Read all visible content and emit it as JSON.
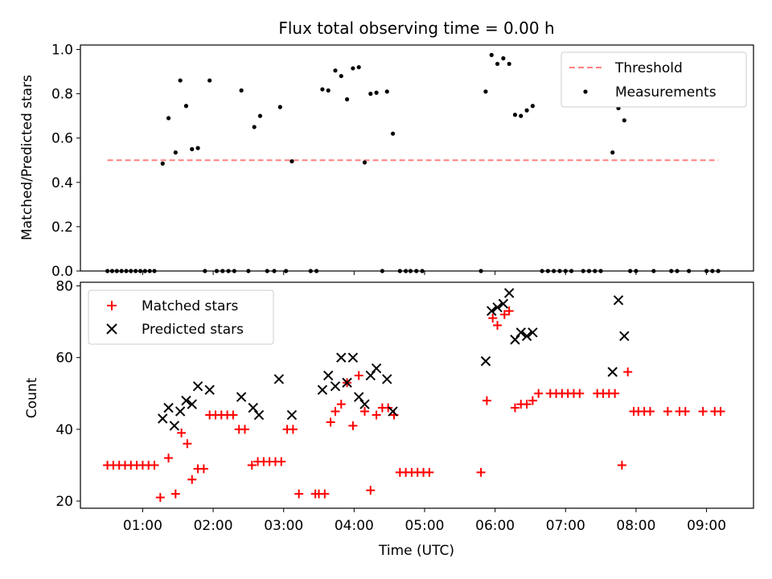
{
  "chart_data": [
    {
      "type": "scatter",
      "title": "Flux total observing time = 0.00 h",
      "xlabel": "",
      "ylabel": "Matched/Predicted stars",
      "xlim": [
        "00:07",
        "09:40"
      ],
      "ylim": [
        0,
        1.02
      ],
      "yticks": [
        "0.0",
        "0.2",
        "0.4",
        "0.6",
        "0.8",
        "1.0"
      ],
      "legend_position": "upper right",
      "threshold": {
        "name": "Threshold",
        "value": 0.5,
        "x_start": "00:30",
        "x_end": "09:10",
        "color": "#ff7f7f",
        "style": "dashed"
      },
      "series": [
        {
          "name": "Measurements",
          "color": "#000000",
          "marker": "dot",
          "points": [
            [
              "00:30",
              0
            ],
            [
              "00:34",
              0
            ],
            [
              "00:38",
              0
            ],
            [
              "00:42",
              0
            ],
            [
              "00:46",
              0
            ],
            [
              "00:50",
              0
            ],
            [
              "00:54",
              0
            ],
            [
              "00:58",
              0
            ],
            [
              "01:02",
              0
            ],
            [
              "01:06",
              0
            ],
            [
              "01:10",
              0
            ],
            [
              "01:17",
              0.485
            ],
            [
              "01:22",
              0.69
            ],
            [
              "01:28",
              0.535
            ],
            [
              "01:32",
              0.86
            ],
            [
              "01:37",
              0.745
            ],
            [
              "01:42",
              0.55
            ],
            [
              "01:47",
              0.555
            ],
            [
              "01:53",
              0
            ],
            [
              "01:57",
              0.86
            ],
            [
              "02:03",
              0
            ],
            [
              "02:08",
              0
            ],
            [
              "02:13",
              0
            ],
            [
              "02:18",
              0
            ],
            [
              "02:24",
              0.815
            ],
            [
              "02:30",
              0
            ],
            [
              "02:35",
              0.65
            ],
            [
              "02:40",
              0.7
            ],
            [
              "02:46",
              0
            ],
            [
              "02:52",
              0
            ],
            [
              "02:57",
              0.74
            ],
            [
              "03:02",
              0
            ],
            [
              "03:07",
              0.495
            ],
            [
              "03:23",
              0
            ],
            [
              "03:28",
              0
            ],
            [
              "03:33",
              0.82
            ],
            [
              "03:38",
              0.815
            ],
            [
              "03:44",
              0.905
            ],
            [
              "03:49",
              0.88
            ],
            [
              "03:54",
              0.775
            ],
            [
              "03:59",
              0.915
            ],
            [
              "04:04",
              0.92
            ],
            [
              "04:09",
              0.49
            ],
            [
              "04:14",
              0.8
            ],
            [
              "04:19",
              0.805
            ],
            [
              "04:24",
              0
            ],
            [
              "04:28",
              0.81
            ],
            [
              "04:33",
              0.62
            ],
            [
              "04:39",
              0
            ],
            [
              "04:44",
              0
            ],
            [
              "04:48",
              0
            ],
            [
              "04:53",
              0
            ],
            [
              "04:58",
              0
            ],
            [
              "05:48",
              0
            ],
            [
              "05:52",
              0.81
            ],
            [
              "05:57",
              0.975
            ],
            [
              "06:02",
              0.935
            ],
            [
              "06:07",
              0.96
            ],
            [
              "06:12",
              0.935
            ],
            [
              "06:17",
              0.705
            ],
            [
              "06:22",
              0.7
            ],
            [
              "06:27",
              0.725
            ],
            [
              "06:32",
              0.745
            ],
            [
              "06:40",
              0
            ],
            [
              "06:45",
              0
            ],
            [
              "06:50",
              0
            ],
            [
              "06:55",
              0
            ],
            [
              "07:00",
              0
            ],
            [
              "07:05",
              0
            ],
            [
              "07:15",
              0
            ],
            [
              "07:20",
              0
            ],
            [
              "07:25",
              0
            ],
            [
              "07:30",
              0
            ],
            [
              "07:40",
              0.535
            ],
            [
              "07:45",
              0.735
            ],
            [
              "07:50",
              0.68
            ],
            [
              "07:55",
              0
            ],
            [
              "08:00",
              0
            ],
            [
              "08:15",
              0
            ],
            [
              "08:30",
              0
            ],
            [
              "08:35",
              0
            ],
            [
              "08:45",
              0
            ],
            [
              "09:00",
              0
            ],
            [
              "09:05",
              0
            ],
            [
              "09:10",
              0
            ]
          ]
        }
      ]
    },
    {
      "type": "scatter",
      "title": "",
      "xlabel": "Time (UTC)",
      "ylabel": "Count",
      "xlim": [
        "00:07",
        "09:40"
      ],
      "ylim": [
        18,
        81
      ],
      "yticks": [
        "20",
        "40",
        "60",
        "80"
      ],
      "xticks": [
        "01:00",
        "02:00",
        "03:00",
        "04:00",
        "05:00",
        "06:00",
        "07:00",
        "08:00",
        "09:00"
      ],
      "legend_position": "upper left",
      "series": [
        {
          "name": "Matched stars",
          "color": "#ff0000",
          "marker": "plus",
          "points": [
            [
              "00:30",
              30
            ],
            [
              "00:35",
              30
            ],
            [
              "00:40",
              30
            ],
            [
              "00:45",
              30
            ],
            [
              "00:50",
              30
            ],
            [
              "00:55",
              30
            ],
            [
              "01:00",
              30
            ],
            [
              "01:05",
              30
            ],
            [
              "01:10",
              30
            ],
            [
              "01:15",
              21
            ],
            [
              "01:22",
              32
            ],
            [
              "01:28",
              22
            ],
            [
              "01:33",
              39
            ],
            [
              "01:38",
              36
            ],
            [
              "01:42",
              26
            ],
            [
              "01:47",
              29
            ],
            [
              "01:52",
              29
            ],
            [
              "01:57",
              44
            ],
            [
              "02:02",
              44
            ],
            [
              "02:07",
              44
            ],
            [
              "02:12",
              44
            ],
            [
              "02:17",
              44
            ],
            [
              "02:22",
              40
            ],
            [
              "02:27",
              40
            ],
            [
              "02:33",
              30
            ],
            [
              "02:38",
              31
            ],
            [
              "02:43",
              31
            ],
            [
              "02:48",
              31
            ],
            [
              "02:53",
              31
            ],
            [
              "02:58",
              31
            ],
            [
              "03:03",
              40
            ],
            [
              "03:08",
              40
            ],
            [
              "03:13",
              22
            ],
            [
              "03:27",
              22
            ],
            [
              "03:30",
              22
            ],
            [
              "03:35",
              22
            ],
            [
              "03:40",
              42
            ],
            [
              "03:44",
              45
            ],
            [
              "03:49",
              47
            ],
            [
              "03:54",
              53
            ],
            [
              "03:59",
              41
            ],
            [
              "04:04",
              55
            ],
            [
              "04:09",
              45
            ],
            [
              "04:14",
              23
            ],
            [
              "04:19",
              44
            ],
            [
              "04:24",
              46
            ],
            [
              "04:29",
              46
            ],
            [
              "04:34",
              44
            ],
            [
              "04:39",
              28
            ],
            [
              "04:44",
              28
            ],
            [
              "04:49",
              28
            ],
            [
              "04:54",
              28
            ],
            [
              "04:59",
              28
            ],
            [
              "05:04",
              28
            ],
            [
              "05:48",
              28
            ],
            [
              "05:53",
              48
            ],
            [
              "05:58",
              71
            ],
            [
              "06:02",
              69
            ],
            [
              "06:08",
              72
            ],
            [
              "06:12",
              73
            ],
            [
              "06:17",
              46
            ],
            [
              "06:22",
              47
            ],
            [
              "06:27",
              47
            ],
            [
              "06:32",
              48
            ],
            [
              "06:37",
              50
            ],
            [
              "06:47",
              50
            ],
            [
              "06:52",
              50
            ],
            [
              "06:57",
              50
            ],
            [
              "07:02",
              50
            ],
            [
              "07:07",
              50
            ],
            [
              "07:12",
              50
            ],
            [
              "07:27",
              50
            ],
            [
              "07:32",
              50
            ],
            [
              "07:37",
              50
            ],
            [
              "07:42",
              50
            ],
            [
              "07:48",
              30
            ],
            [
              "07:53",
              56
            ],
            [
              "07:58",
              45
            ],
            [
              "08:02",
              45
            ],
            [
              "08:07",
              45
            ],
            [
              "08:12",
              45
            ],
            [
              "08:27",
              45
            ],
            [
              "08:37",
              45
            ],
            [
              "08:42",
              45
            ],
            [
              "08:57",
              45
            ],
            [
              "09:07",
              45
            ],
            [
              "09:12",
              45
            ]
          ]
        },
        {
          "name": "Predicted stars",
          "color": "#000000",
          "marker": "x",
          "points": [
            [
              "01:17",
              43
            ],
            [
              "01:22",
              46
            ],
            [
              "01:27",
              41
            ],
            [
              "01:32",
              45
            ],
            [
              "01:37",
              48
            ],
            [
              "01:42",
              47
            ],
            [
              "01:47",
              52
            ],
            [
              "01:57",
              51
            ],
            [
              "02:24",
              49
            ],
            [
              "02:34",
              46
            ],
            [
              "02:39",
              44
            ],
            [
              "02:56",
              54
            ],
            [
              "03:07",
              44
            ],
            [
              "03:33",
              51
            ],
            [
              "03:38",
              55
            ],
            [
              "03:44",
              52
            ],
            [
              "03:49",
              60
            ],
            [
              "03:54",
              53
            ],
            [
              "03:59",
              60
            ],
            [
              "04:04",
              49
            ],
            [
              "04:09",
              47
            ],
            [
              "04:14",
              55
            ],
            [
              "04:19",
              57
            ],
            [
              "04:28",
              54
            ],
            [
              "04:33",
              45
            ],
            [
              "05:52",
              59
            ],
            [
              "05:57",
              73
            ],
            [
              "06:02",
              74
            ],
            [
              "06:07",
              75
            ],
            [
              "06:12",
              78
            ],
            [
              "06:17",
              65
            ],
            [
              "06:22",
              67
            ],
            [
              "06:27",
              66
            ],
            [
              "06:32",
              67
            ],
            [
              "07:40",
              56
            ],
            [
              "07:45",
              76
            ],
            [
              "07:50",
              66
            ]
          ]
        }
      ]
    }
  ]
}
